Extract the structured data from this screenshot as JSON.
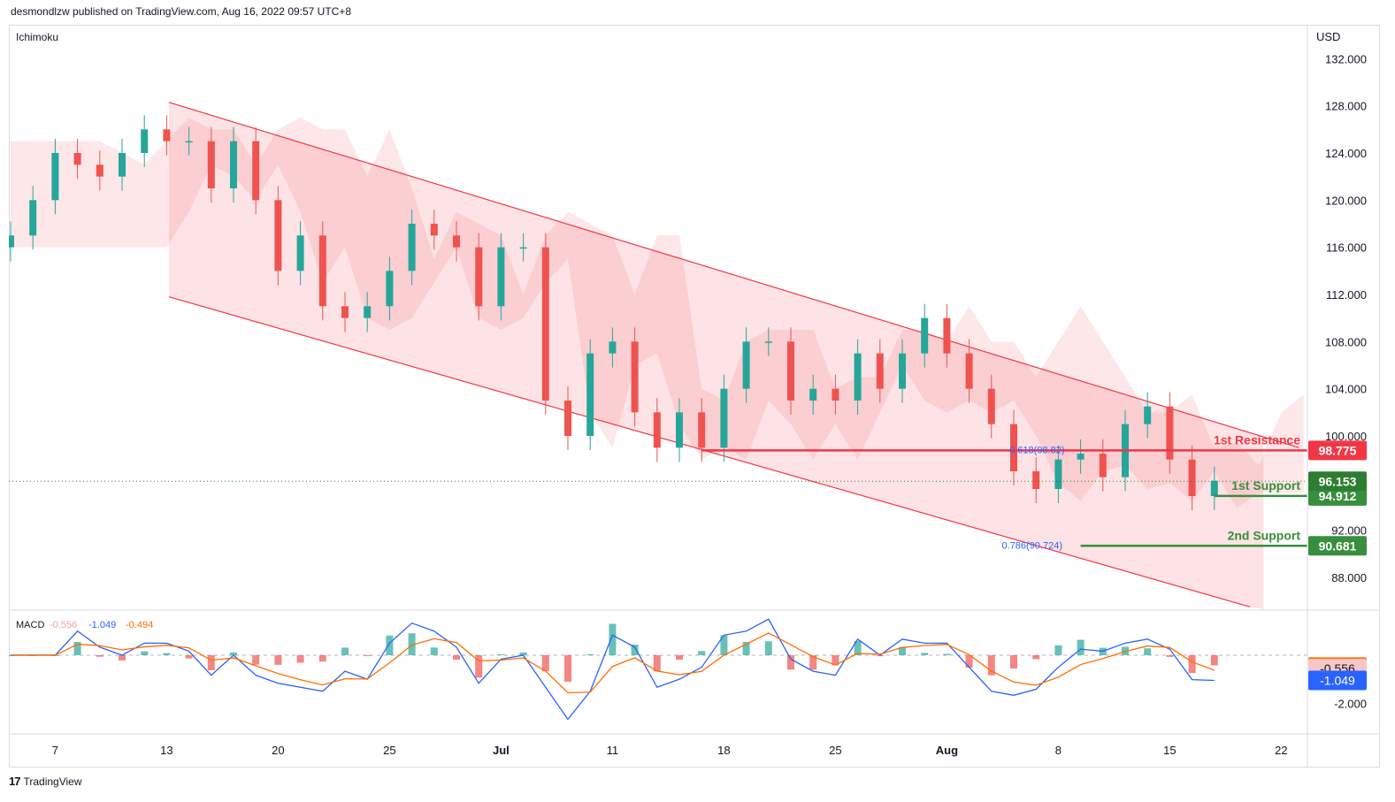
{
  "header": {
    "published": "desmondlzw published on TradingView.com, Aug 16, 2022 09:57 UTC+8"
  },
  "indicator_label": "Ichimoku",
  "currency": "USD",
  "macd_legend": {
    "name": "MACD",
    "hist": "-0.556",
    "macd": "-1.049",
    "signal": "-0.494"
  },
  "footer": {
    "logo": "17",
    "brand": "TradingView"
  },
  "chart_data": {
    "type": "candlestick",
    "price_axis": {
      "ylim": [
        85.3,
        134.8
      ],
      "ticks": [
        "132.000",
        "128.000",
        "124.000",
        "120.000",
        "116.000",
        "112.000",
        "108.000",
        "104.000",
        "100.000",
        "92.000",
        "88.000"
      ],
      "tick_values": [
        132,
        128,
        124,
        120,
        116,
        112,
        108,
        104,
        100,
        92,
        88
      ]
    },
    "macd_axis": {
      "ylim": [
        -3.2,
        1.8
      ],
      "ticks": [
        "-2.000"
      ],
      "tick_values": [
        -2
      ]
    },
    "x_axis": {
      "labels": [
        "7",
        "13",
        "20",
        "25",
        "Jul",
        "11",
        "18",
        "25",
        "Aug",
        "8",
        "15",
        "22"
      ],
      "index": [
        2,
        7,
        12,
        17,
        22,
        27,
        32,
        37,
        42,
        47,
        52,
        57
      ]
    },
    "levels": [
      {
        "name": "1st Resistance",
        "label": "1st Resistance",
        "value": 98.775,
        "value_label": "98.775",
        "color": "#f23645",
        "from_index": 31
      },
      {
        "name": "1st Support",
        "label": "1st Support",
        "value": 94.912,
        "value_label": "94.912",
        "color": "#388e3c",
        "from_index": 54
      },
      {
        "name": "2nd Support",
        "label": "2nd Support",
        "value": 90.681,
        "value_label": "90.681",
        "color": "#388e3c",
        "from_index": 48
      }
    ],
    "last_price": {
      "value": 96.153,
      "label": "96.153",
      "color": "#2e7d32"
    },
    "fib_labels": [
      {
        "text": "0.786(90.724)",
        "value": 90.724,
        "index": 47.5
      },
      {
        "text": "0.618(98.82)",
        "value": 98.82,
        "index": 47.6
      }
    ],
    "channel": {
      "upper": [
        [
          7.1,
          128.3
        ],
        [
          57.8,
          99.0
        ]
      ],
      "lower": [
        [
          7.1,
          111.8
        ],
        [
          55.6,
          85.5
        ]
      ]
    },
    "macd_values": [
      {
        "label": "-0.494",
        "value": -0.494,
        "color": "#ff6d00"
      },
      {
        "label": "-0.556",
        "value": -0.556,
        "color": "#f7c6c6"
      },
      {
        "label": "-1.049",
        "value": -1.049,
        "color": "#2962ff"
      }
    ],
    "series": [
      {
        "name": "price",
        "close": [
          117,
          120,
          124,
          123,
          122,
          124,
          126,
          125,
          125,
          121,
          125,
          120,
          114,
          117,
          111,
          110,
          111,
          114,
          118,
          117,
          116,
          111,
          116,
          116,
          103,
          100,
          107,
          108,
          102,
          99,
          102,
          99,
          104,
          108,
          108,
          103,
          104,
          103,
          107,
          104,
          107,
          110,
          107,
          104,
          101,
          97,
          95.5,
          98,
          98.5,
          96.5,
          101,
          102.5,
          98,
          94.9,
          96.2
        ]
      }
    ]
  }
}
